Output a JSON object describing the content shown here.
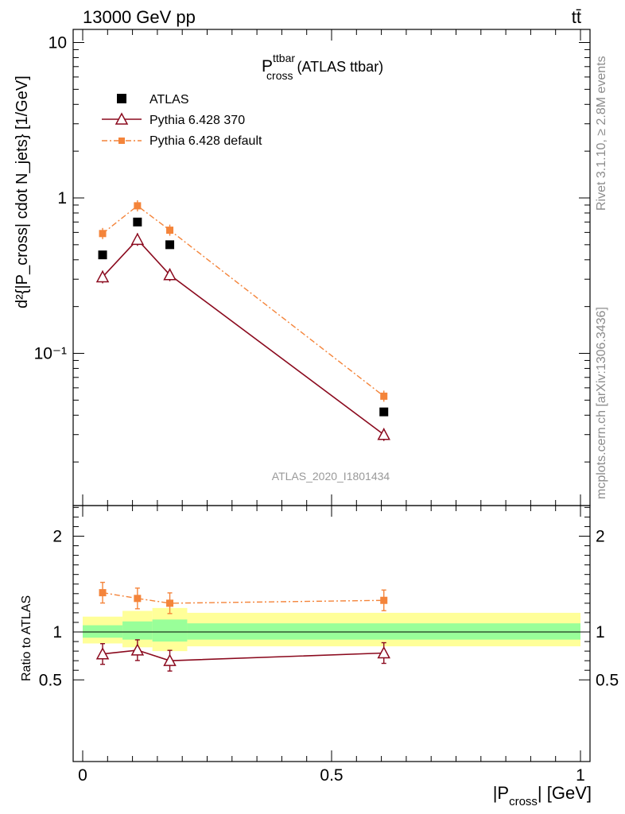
{
  "header": {
    "energy_label": "13000 GeV pp",
    "process_label": "tt̄"
  },
  "side_text": {
    "rivet": "Rivet 3.1.10, ≥ 2.8M events",
    "mcplots": "mcplots.cern.ch [arXiv:1306.3436]"
  },
  "plot_title": {
    "main": "P",
    "sup": "ttbar",
    "sub": "cross",
    "suffix": " (ATLAS ttbar)"
  },
  "analysis_label": "ATLAS_2020_I1801434",
  "ylabel_main": "d²{|P_cross| cdot N_jets} [1/GeV]",
  "ylabel_ratio": "Ratio to ATLAS",
  "xlabel": {
    "main": "|P",
    "sub": "cross",
    "suffix": "| [GeV]"
  },
  "legend": [
    {
      "name": "ATLAS"
    },
    {
      "name": "Pythia 6.428 370"
    },
    {
      "name": "Pythia 6.428 default"
    }
  ],
  "chart_data": [
    {
      "type": "scatter",
      "panel": "main",
      "yscale": "log",
      "xlim": [
        0,
        1
      ],
      "ylim": [
        0.02,
        12
      ],
      "y_tick_labels": [
        "10⁻¹",
        "1",
        "10"
      ],
      "x": [
        0.04,
        0.11,
        0.175,
        0.605
      ],
      "series": [
        {
          "name": "ATLAS",
          "values": [
            0.43,
            0.7,
            0.5,
            0.042
          ],
          "color": "#000000"
        },
        {
          "name": "Pythia 6.428 370",
          "values": [
            0.31,
            0.54,
            0.32,
            0.03
          ],
          "color": "#8b0a1e"
        },
        {
          "name": "Pythia 6.428 default",
          "values": [
            0.59,
            0.89,
            0.62,
            0.053
          ],
          "color": "#f4843a"
        }
      ]
    },
    {
      "type": "line",
      "panel": "ratio",
      "xlim": [
        0,
        1
      ],
      "ylim": [
        0.4,
        2.4
      ],
      "y_tick_labels": [
        "0.5",
        "1",
        "2"
      ],
      "x_tick_labels": [
        "0",
        "0.5",
        "1"
      ],
      "x": [
        0.04,
        0.11,
        0.175,
        0.605
      ],
      "series": [
        {
          "name": "Pythia 6.428 370",
          "values": [
            0.77,
            0.81,
            0.7,
            0.78
          ],
          "color": "#8b0a1e"
        },
        {
          "name": "Pythia 6.428 default",
          "values": [
            1.41,
            1.35,
            1.3,
            1.33
          ],
          "color": "#f4843a"
        }
      ],
      "bands": {
        "edges": [
          0,
          0.08,
          0.14,
          0.21,
          1
        ],
        "inner": [
          [
            0.94,
            1.07
          ],
          [
            0.92,
            1.11
          ],
          [
            0.9,
            1.13
          ],
          [
            0.92,
            1.09
          ]
        ],
        "outer": [
          [
            0.88,
            1.16
          ],
          [
            0.84,
            1.22
          ],
          [
            0.8,
            1.25
          ],
          [
            0.85,
            1.2
          ]
        ],
        "inner_color": "#99ff99",
        "outer_color": "#ffff99"
      }
    }
  ]
}
